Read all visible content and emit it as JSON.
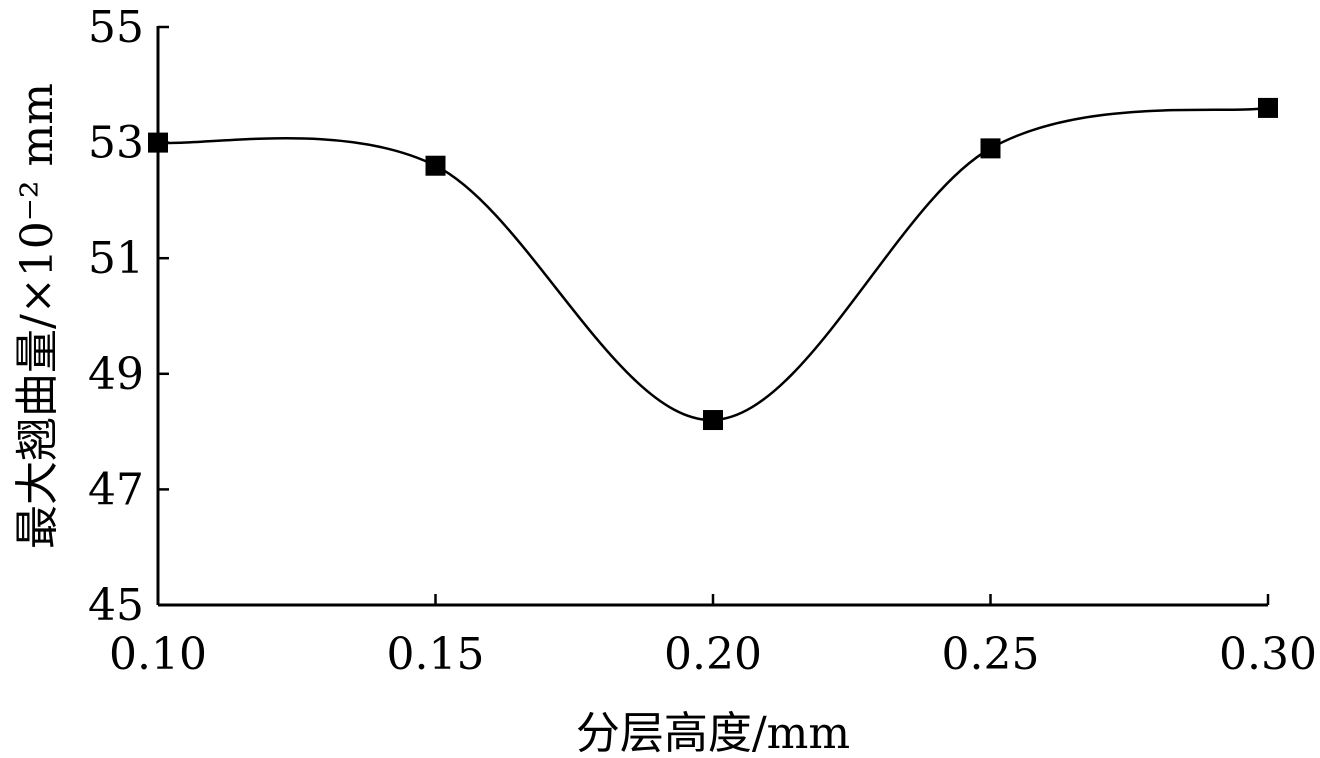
{
  "chart_data": {
    "type": "line",
    "xlabel": "分层高度/mm",
    "ylabel": "最大翘曲量/×10⁻² mm",
    "x": [
      0.1,
      0.15,
      0.2,
      0.25,
      0.3
    ],
    "x_tick_labels": [
      "0.10",
      "0.15",
      "0.20",
      "0.25",
      "0.30"
    ],
    "y_ticks": [
      45,
      47,
      49,
      51,
      53,
      55
    ],
    "xlim": [
      0.1,
      0.3
    ],
    "ylim": [
      45,
      55
    ],
    "grid": false,
    "series": [
      {
        "values": [
          53.0,
          52.6,
          48.2,
          52.9,
          53.6
        ],
        "marker": "square",
        "color": "#000000",
        "smooth": true
      }
    ]
  }
}
